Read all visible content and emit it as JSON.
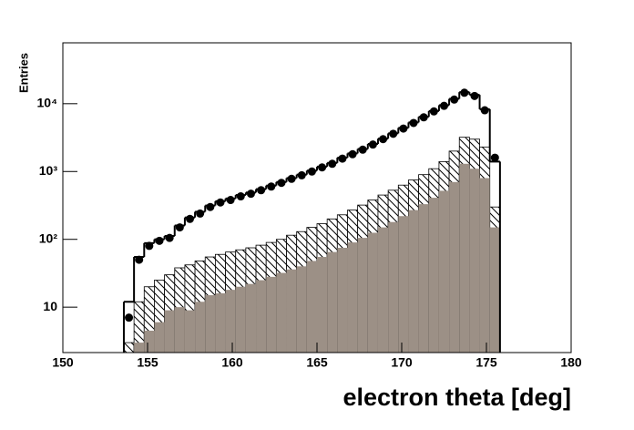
{
  "chart_data": {
    "type": "histogram",
    "x_label": "electron theta [deg]",
    "y_label": "Entries",
    "bins": [
      153.6,
      154.2,
      154.8,
      155.4,
      156.0,
      156.6,
      157.2,
      157.8,
      158.4,
      159.0,
      159.6,
      160.2,
      160.8,
      161.4,
      162.0,
      162.6,
      163.2,
      163.8,
      164.4,
      165.0,
      165.6,
      166.2,
      166.8,
      167.4,
      168.0,
      168.6,
      169.2,
      169.8,
      170.4,
      171.0,
      171.6,
      172.2,
      172.8,
      173.4,
      174.0,
      174.6,
      175.2,
      175.8
    ],
    "series": [
      {
        "style": "hatched",
        "color": "#000000",
        "values": [
          3,
          12,
          20,
          25,
          30,
          38,
          42,
          48,
          55,
          60,
          65,
          70,
          75,
          82,
          90,
          100,
          115,
          130,
          150,
          170,
          200,
          230,
          270,
          320,
          380,
          450,
          530,
          630,
          750,
          900,
          1100,
          1400,
          2000,
          3200,
          3000,
          2300,
          300
        ]
      },
      {
        "style": "filled",
        "color": "#9c9086",
        "values": [
          null,
          3,
          4.5,
          6,
          9,
          10,
          9,
          12,
          15,
          16,
          18,
          20,
          22,
          25,
          28,
          32,
          36,
          40,
          48,
          55,
          65,
          75,
          90,
          105,
          125,
          150,
          180,
          220,
          270,
          330,
          410,
          520,
          700,
          1300,
          1100,
          800,
          150
        ]
      },
      {
        "style": "step",
        "color": "#000000",
        "values": [
          12,
          55,
          88,
          100,
          112,
          160,
          210,
          255,
          315,
          365,
          400,
          450,
          490,
          550,
          620,
          700,
          800,
          900,
          1030,
          1180,
          1340,
          1600,
          1850,
          2150,
          2550,
          3050,
          3650,
          4400,
          5300,
          6400,
          7800,
          9500,
          11800,
          14800,
          13500,
          8300,
          1400
        ]
      },
      {
        "style": "markers",
        "color": "#000000",
        "values": [
          7,
          50,
          80,
          95,
          105,
          150,
          200,
          240,
          300,
          350,
          380,
          430,
          470,
          530,
          600,
          680,
          780,
          880,
          1000,
          1150,
          1300,
          1550,
          1800,
          2100,
          2500,
          3000,
          3600,
          4300,
          5200,
          6300,
          7700,
          9300,
          11500,
          14500,
          13000,
          8000,
          1600
        ]
      }
    ],
    "xlim": [
      150,
      180
    ],
    "xticks": [
      150,
      155,
      160,
      165,
      170,
      175,
      180
    ],
    "ylim": [
      2.14,
      79000
    ],
    "log_y": true,
    "yticks": [
      10,
      {
        "value": 100,
        "label": "10²"
      },
      {
        "value": 1000,
        "label": "10³"
      },
      {
        "value": 10000,
        "label": "10⁴"
      }
    ]
  }
}
